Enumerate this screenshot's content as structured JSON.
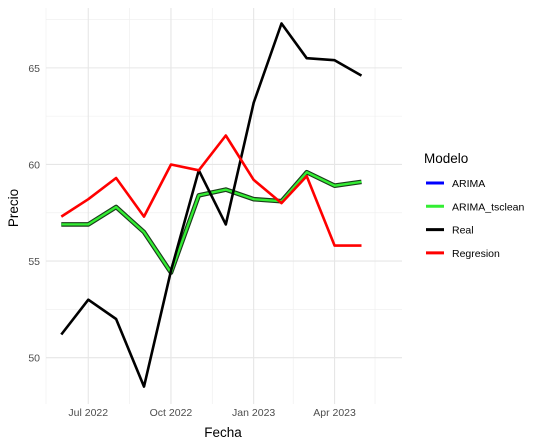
{
  "chart_data": {
    "type": "line",
    "xlabel": "Fecha",
    "ylabel": "Precio",
    "legend": {
      "title": "Modelo",
      "placement": "right"
    },
    "grid": true,
    "xlim": [
      "2022-05-15",
      "2023-06-15"
    ],
    "ylim": [
      47.6,
      68.1
    ],
    "x_ticks": [
      {
        "label": "Jul 2022",
        "date": "2022-07-01"
      },
      {
        "label": "Oct 2022",
        "date": "2022-10-01"
      },
      {
        "label": "Jan 2023",
        "date": "2023-01-01"
      },
      {
        "label": "Apr 2023",
        "date": "2023-04-01"
      }
    ],
    "y_ticks": [
      50,
      55,
      60,
      65
    ],
    "x": [
      "2022-06-01",
      "2022-07-01",
      "2022-08-01",
      "2022-09-01",
      "2022-10-01",
      "2022-11-01",
      "2022-12-01",
      "2023-01-01",
      "2023-02-01",
      "2023-03-01",
      "2023-04-01",
      "2023-05-01"
    ],
    "series": [
      {
        "name": "ARIMA",
        "color": "#0000FF",
        "values": [
          56.9,
          56.9,
          57.8,
          56.5,
          54.4,
          58.4,
          58.7,
          58.2,
          58.1,
          59.6,
          58.9,
          59.1
        ]
      },
      {
        "name": "ARIMA_tsclean",
        "color": "#33EE33",
        "values": [
          56.9,
          56.9,
          57.8,
          56.5,
          54.4,
          58.4,
          58.7,
          58.2,
          58.1,
          59.6,
          58.9,
          59.1
        ]
      },
      {
        "name": "Real",
        "color": "#000000",
        "values": [
          51.2,
          53.0,
          52.0,
          48.5,
          54.5,
          59.7,
          56.9,
          63.2,
          67.3,
          65.5,
          65.4,
          64.6
        ]
      },
      {
        "name": "Regresion",
        "color": "#FF0000",
        "values": [
          57.3,
          58.2,
          59.3,
          57.3,
          60.0,
          59.7,
          61.5,
          59.2,
          58.0,
          59.4,
          55.8,
          55.8
        ]
      }
    ]
  }
}
